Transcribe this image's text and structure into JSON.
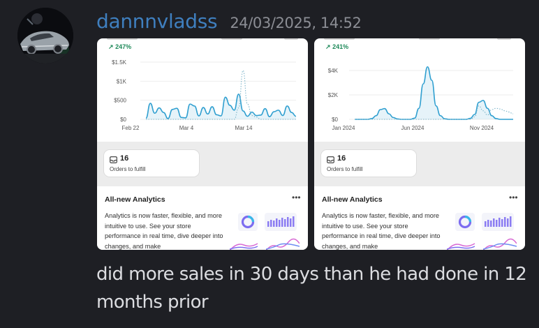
{
  "author": {
    "username": "dannnvladss",
    "timestamp": "24/03/2025, 14:52"
  },
  "screenshots": [
    {
      "growth_label": "247%",
      "chart_data": {
        "type": "line",
        "x_ticks": [
          "Feb 22",
          "Mar 4",
          "Mar 14"
        ],
        "y_ticks": [
          "$1.5K",
          "$1K",
          "$500",
          "$0"
        ],
        "ylim": [
          0,
          1500
        ],
        "series": [
          {
            "style": "solid",
            "values": [
              30,
              420,
              160,
              300,
              180,
              20,
              260,
              290,
              50,
              40,
              400,
              350,
              90,
              310,
              140,
              330,
              120,
              90,
              580,
              370,
              240,
              660,
              220,
              80,
              190,
              100,
              110,
              280,
              70,
              200,
              240,
              100,
              350,
              180,
              80
            ]
          },
          {
            "style": "dotted",
            "values": [
              0,
              0,
              0,
              0,
              0,
              0,
              0,
              0,
              0,
              0,
              0,
              0,
              0,
              0,
              0,
              0,
              0,
              0,
              0,
              0,
              0,
              300,
              1280,
              400,
              100,
              60,
              0,
              0,
              0,
              0,
              0,
              0,
              0,
              0,
              0
            ]
          }
        ]
      },
      "orders": {
        "count": "16",
        "label": "Orders to fulfill"
      },
      "analytics": {
        "title": "All-new Analytics",
        "more": "•••",
        "body": "Analytics is now faster, flexible, and more intuitive to use. See your store performance in real time, dive deeper into changes, and make"
      }
    },
    {
      "growth_label": "241%",
      "chart_data": {
        "type": "line",
        "x_ticks": [
          "Jan 2024",
          "Jun 2024",
          "Nov 2024"
        ],
        "y_ticks": [
          "$4K",
          "$2K",
          "$0"
        ],
        "ylim": [
          0,
          4400
        ],
        "series": [
          {
            "style": "solid",
            "values": [
              0,
              0,
              0,
              0,
              60,
              300,
              800,
              880,
              450,
              150,
              30,
              0,
              0,
              0,
              100,
              900,
              2900,
              4300,
              3200,
              1100,
              300,
              50,
              0,
              0,
              0,
              0,
              0,
              80,
              400,
              1400,
              1550,
              900,
              300,
              60,
              0,
              0,
              0,
              0
            ]
          },
          {
            "style": "dotted",
            "values": [
              0,
              0,
              0,
              0,
              0,
              0,
              0,
              0,
              0,
              0,
              0,
              0,
              0,
              0,
              0,
              0,
              0,
              0,
              0,
              0,
              0,
              0,
              0,
              0,
              0,
              0,
              0,
              0,
              200,
              1100,
              700,
              350,
              800,
              900,
              850,
              700,
              600,
              450
            ]
          }
        ]
      },
      "orders": {
        "count": "16",
        "label": "Orders to fulfill"
      },
      "analytics": {
        "title": "All-new Analytics",
        "more": "•••",
        "body": "Analytics is now faster, flexible, and more intuitive to use. See your store performance in real time, dive deeper into changes, and make"
      }
    }
  ],
  "message": {
    "text": "did more sales in 30 days than he had done in 12 months prior"
  },
  "colors": {
    "accent_line": "#2f9fd0",
    "growth": "#1f8a5a",
    "username": "#3f7fbf"
  },
  "icons": {
    "growth": "arrow-up-right-icon",
    "orders": "inbox-icon",
    "more": "ellipsis-icon",
    "avatar": "car-photo"
  }
}
